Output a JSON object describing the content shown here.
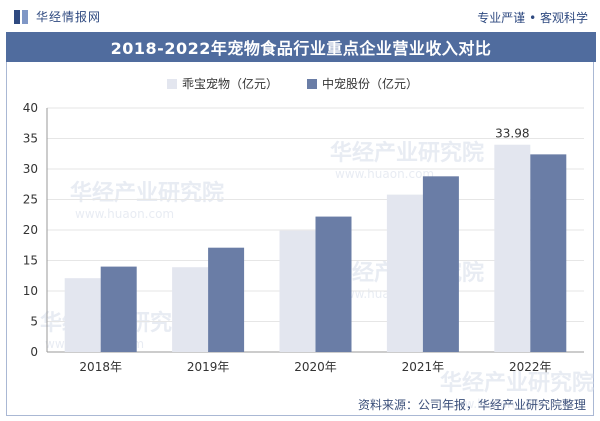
{
  "header": {
    "brand": "华经情报网",
    "slogan": "专业严谨 • 客观科学"
  },
  "title": "2018-2022年宠物食品行业重点企业营业收入对比",
  "source": "资料来源：公司年报，华经产业研究院整理",
  "watermark": {
    "text": "华经产业研究院",
    "url": "www.huaon.com"
  },
  "colors": {
    "series_a": "#e3e6ef",
    "series_b": "#6a7da6",
    "title_bg": "#506c9e",
    "brand": "#2f4a80"
  },
  "chart_data": {
    "type": "bar",
    "categories": [
      "2018年",
      "2019年",
      "2020年",
      "2021年",
      "2022年"
    ],
    "series": [
      {
        "name": "乖宝宠物（亿元）",
        "values": [
          12.1,
          13.9,
          19.9,
          25.8,
          33.98
        ]
      },
      {
        "name": "中宠股份（亿元）",
        "values": [
          14.0,
          17.1,
          22.2,
          28.8,
          32.4
        ]
      }
    ],
    "ylim": [
      0,
      40
    ],
    "yticks": [
      0,
      5,
      10,
      15,
      20,
      25,
      30,
      35,
      40
    ],
    "data_labels": [
      {
        "series": 0,
        "category": "2022年",
        "text": "33.98"
      }
    ],
    "legend_position": "top-left",
    "grid": true
  }
}
